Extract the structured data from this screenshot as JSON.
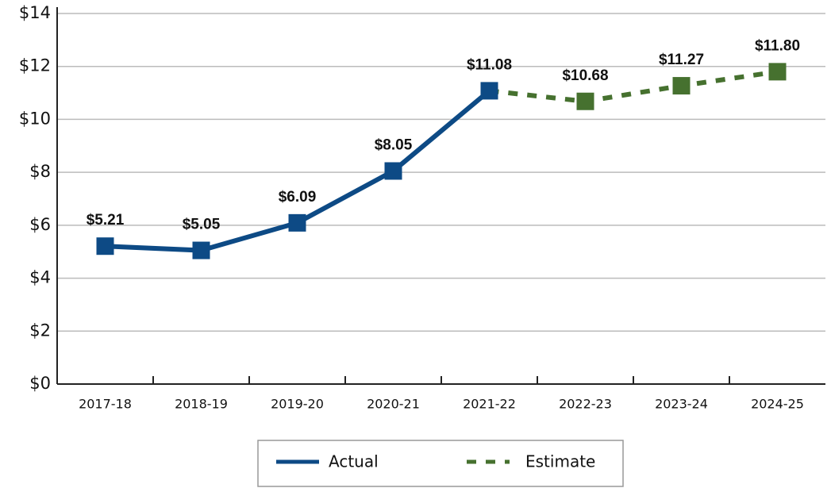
{
  "chart_data": {
    "type": "line",
    "categories": [
      "2017-18",
      "2018-19",
      "2019-20",
      "2020-21",
      "2021-22",
      "2022-23",
      "2023-24",
      "2024-25"
    ],
    "series": [
      {
        "name": "Actual",
        "color": "#0d4a85",
        "dashed": false,
        "values": [
          5.21,
          5.05,
          6.09,
          8.05,
          11.08,
          null,
          null,
          null
        ],
        "value_labels": [
          "$5.21",
          "$5.05",
          "$6.09",
          "$8.05",
          "$11.08",
          null,
          null,
          null
        ]
      },
      {
        "name": "Estimate",
        "color": "#46712f",
        "dashed": true,
        "values": [
          null,
          null,
          null,
          null,
          11.08,
          10.68,
          11.27,
          11.8
        ],
        "value_labels": [
          null,
          null,
          null,
          null,
          null,
          "$10.68",
          "$11.27",
          "$11.80"
        ]
      }
    ],
    "ylim": [
      0,
      14
    ],
    "yticks": [
      {
        "value": 0,
        "label": "$0"
      },
      {
        "value": 2,
        "label": "$2"
      },
      {
        "value": 4,
        "label": "$4"
      },
      {
        "value": 6,
        "label": "$6"
      },
      {
        "value": 8,
        "label": "$8"
      },
      {
        "value": 10,
        "label": "$10"
      },
      {
        "value": 12,
        "label": "$12"
      },
      {
        "value": 14,
        "label": "$14"
      }
    ],
    "grid": true,
    "legend": "bottom"
  }
}
